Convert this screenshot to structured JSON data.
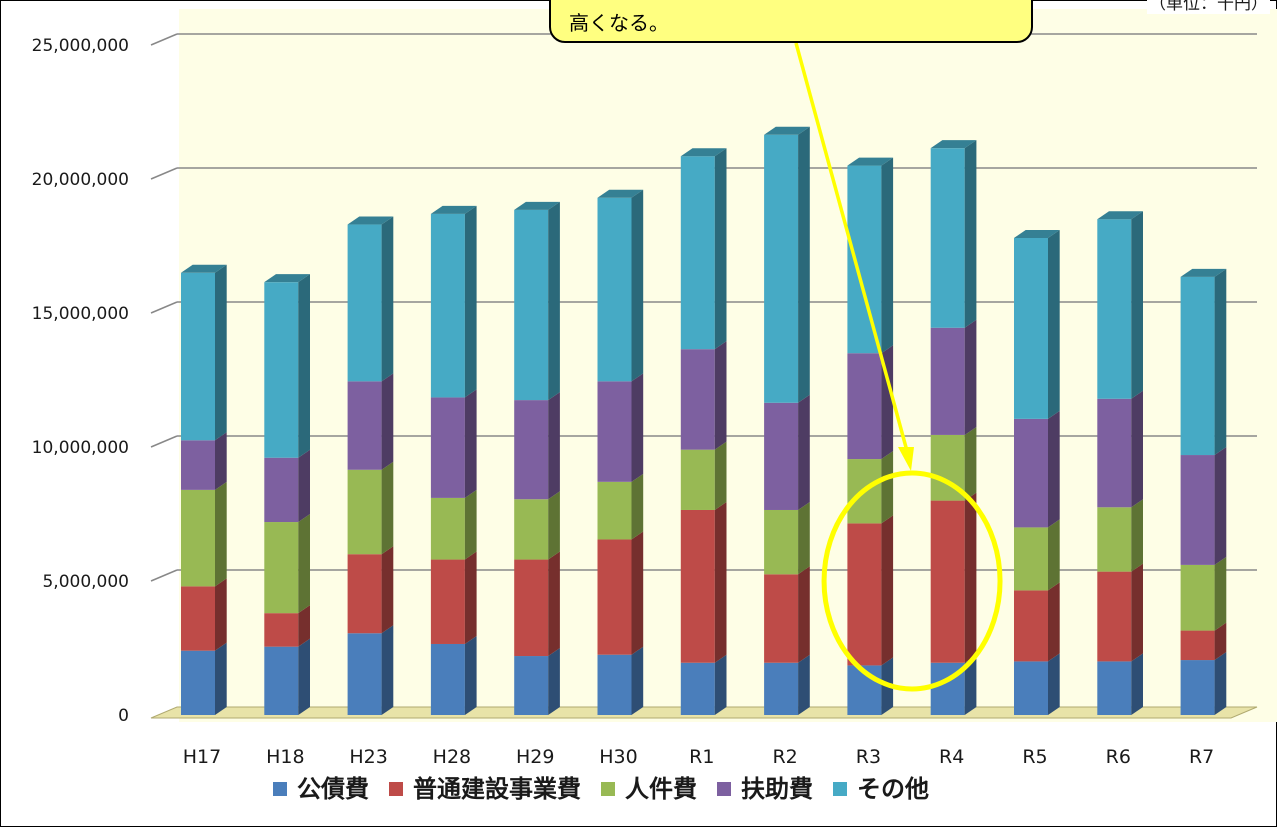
{
  "unit_label": "（単位：千円）",
  "callout": {
    "text": "高くなる。"
  },
  "colors": {
    "公債費": "#4a7ebb",
    "普通建設事業費": "#be4b48",
    "人件費": "#98b954",
    "扶助費": "#7d60a0",
    "その他": "#46aac5",
    "annotation": "#ffff00"
  },
  "chart_data": {
    "type": "bar",
    "stacked": true,
    "categories": [
      "H17",
      "H18",
      "H23",
      "H28",
      "H29",
      "H30",
      "R1",
      "R2",
      "R3",
      "R4",
      "R5",
      "R6",
      "R7"
    ],
    "series": [
      {
        "name": "公債費",
        "values": [
          2400000,
          2550000,
          3050000,
          2650000,
          2200000,
          2250000,
          1950000,
          1950000,
          1850000,
          1950000,
          2000000,
          2000000,
          2050000
        ]
      },
      {
        "name": "普通建設事業費",
        "values": [
          2400000,
          1250000,
          2950000,
          3150000,
          3600000,
          4300000,
          5700000,
          3300000,
          5300000,
          6050000,
          2650000,
          3350000,
          1100000
        ]
      },
      {
        "name": "人件費",
        "values": [
          3600000,
          3400000,
          3150000,
          2300000,
          2250000,
          2150000,
          2250000,
          2400000,
          2400000,
          2450000,
          2350000,
          2400000,
          2450000
        ]
      },
      {
        "name": "扶助費",
        "values": [
          1850000,
          2400000,
          3300000,
          3750000,
          3700000,
          3750000,
          3750000,
          4000000,
          3950000,
          4000000,
          4050000,
          4050000,
          4100000
        ]
      },
      {
        "name": "その他",
        "values": [
          6250000,
          6550000,
          5850000,
          6850000,
          7100000,
          6850000,
          7200000,
          10000000,
          7000000,
          6700000,
          6750000,
          6700000,
          6650000
        ]
      }
    ],
    "ylim": [
      0,
      25000000
    ],
    "yticks": [
      "0",
      "5,000,000",
      "10,000,000",
      "15,000,000",
      "20,000,000",
      "25,000,000"
    ],
    "grid": true,
    "legend": "bottom",
    "highlight": {
      "categories": [
        "R3",
        "R4"
      ],
      "shape": "ellipse"
    }
  }
}
